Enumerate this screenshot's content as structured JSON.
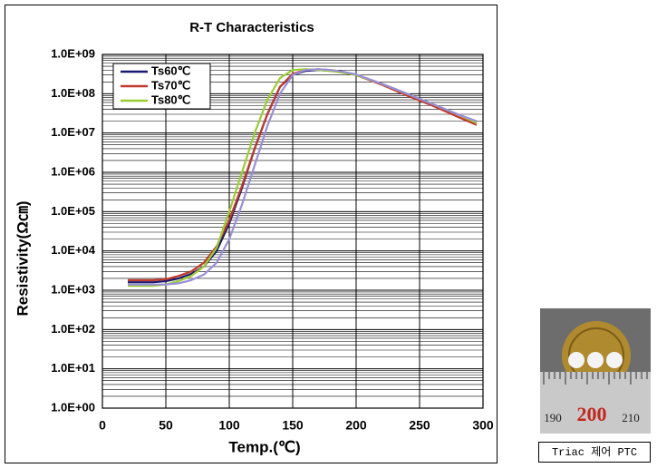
{
  "chart_data": {
    "type": "line",
    "title": "R-T Characteristics",
    "x_label": "Temp.(℃)",
    "y_label": "Resistivity(Ω㎝)",
    "x": [
      20,
      30,
      40,
      50,
      60,
      70,
      80,
      90,
      100,
      110,
      120,
      130,
      140,
      150,
      160,
      170,
      180,
      190,
      200,
      220,
      240,
      260,
      280,
      295
    ],
    "series": [
      {
        "name": "Ts60℃",
        "color": "#1a1a6e",
        "values": [
          1600,
          1600,
          1600,
          1700,
          2000,
          2600,
          4000,
          10000,
          50000,
          400000,
          4000000,
          30000000,
          150000000,
          300000000,
          380000000,
          400000000,
          380000000,
          350000000,
          300000000,
          180000000,
          100000000,
          55000000,
          30000000,
          19000000
        ]
      },
      {
        "name": "Ts70℃",
        "color": "#c0392b",
        "values": [
          1800,
          1800,
          1800,
          1900,
          2300,
          3000,
          5000,
          13000,
          60000,
          450000,
          4000000,
          30000000,
          150000000,
          320000000,
          400000000,
          420000000,
          400000000,
          360000000,
          300000000,
          170000000,
          90000000,
          50000000,
          26000000,
          16000000
        ]
      },
      {
        "name": "Ts80℃",
        "color": "#9acd32",
        "values": [
          1300,
          1300,
          1300,
          1400,
          1700,
          2300,
          4000,
          12000,
          100000,
          1000000,
          10000000,
          70000000,
          250000000,
          400000000,
          420000000,
          400000000,
          380000000,
          340000000,
          300000000,
          180000000,
          100000000,
          55000000,
          30000000,
          18000000
        ]
      },
      {
        "color": "#9a8fd8",
        "values": [
          1400,
          1400,
          1400,
          1400,
          1500,
          1800,
          2500,
          5000,
          20000,
          150000,
          1500000,
          15000000,
          100000000,
          300000000,
          400000000,
          420000000,
          400000000,
          360000000,
          310000000,
          180000000,
          100000000,
          55000000,
          30000000,
          20000000
        ]
      }
    ],
    "xlim": [
      0,
      300
    ],
    "xticks": [
      0,
      50,
      100,
      150,
      200,
      250,
      300
    ],
    "ylim": [
      1,
      1000000000
    ],
    "yscale": "log",
    "yticks": [
      {
        "value": 1,
        "label": "1.0E+00"
      },
      {
        "value": 10,
        "label": "1.0E+01"
      },
      {
        "value": 100,
        "label": "1.0E+02"
      },
      {
        "value": 1000,
        "label": "1.0E+03"
      },
      {
        "value": 10000,
        "label": "1.0E+04"
      },
      {
        "value": 100000,
        "label": "1.0E+05"
      },
      {
        "value": 1000000,
        "label": "1.0E+06"
      },
      {
        "value": 10000000,
        "label": "1.0E+07"
      },
      {
        "value": 100000000,
        "label": "1.0E+08"
      },
      {
        "value": 1000000000,
        "label": "1.0E+09"
      }
    ],
    "grid": true,
    "legend": "top-left"
  },
  "photo": {
    "ruler_labels": [
      "190",
      "200",
      "210"
    ],
    "caption": "Triac 제어 PTC"
  }
}
